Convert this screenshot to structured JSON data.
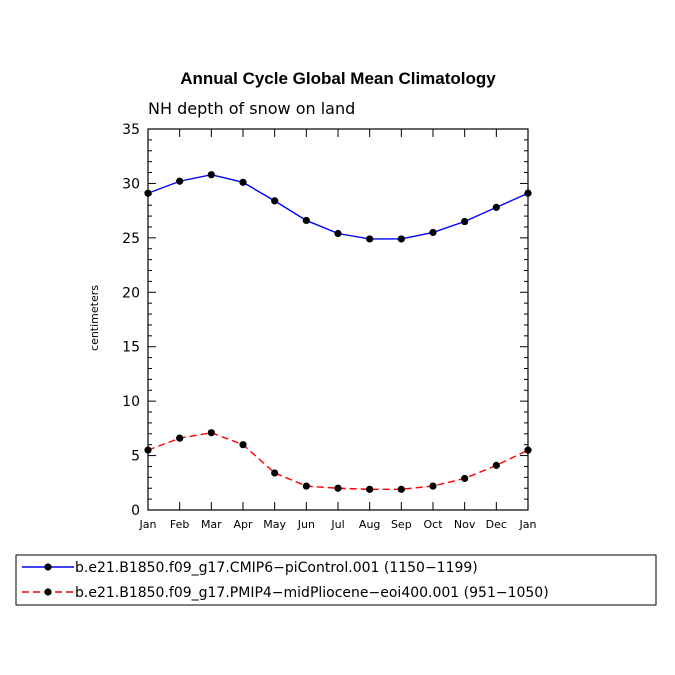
{
  "chart_data": {
    "type": "line",
    "title": "Annual Cycle Global Mean Climatology",
    "subtitle": "NH depth of snow on land",
    "ylabel": "centimeters",
    "xlabel": "",
    "categories": [
      "Jan",
      "Feb",
      "Mar",
      "Apr",
      "May",
      "Jun",
      "Jul",
      "Aug",
      "Sep",
      "Oct",
      "Nov",
      "Dec",
      "Jan"
    ],
    "ylim": [
      0,
      35
    ],
    "yticks": [
      0,
      5,
      10,
      15,
      20,
      25,
      30,
      35
    ],
    "series": [
      {
        "name": "b.e21.B1850.f09_g17.CMIP6−piControl.001 (1150−1199)",
        "color": "#0000ff",
        "style": "solid",
        "values": [
          29.1,
          30.2,
          30.8,
          30.1,
          28.4,
          26.6,
          25.4,
          24.9,
          24.9,
          25.5,
          26.5,
          27.8,
          29.1
        ]
      },
      {
        "name": "b.e21.B1850.f09_g17.PMIP4−midPliocene−eoi400.001 (951−1050)",
        "color": "#ff0000",
        "style": "dashed",
        "values": [
          5.5,
          6.6,
          7.1,
          6.0,
          3.4,
          2.2,
          2.0,
          1.9,
          1.9,
          2.2,
          2.9,
          4.1,
          5.5
        ]
      }
    ],
    "legend_position": "bottom"
  }
}
